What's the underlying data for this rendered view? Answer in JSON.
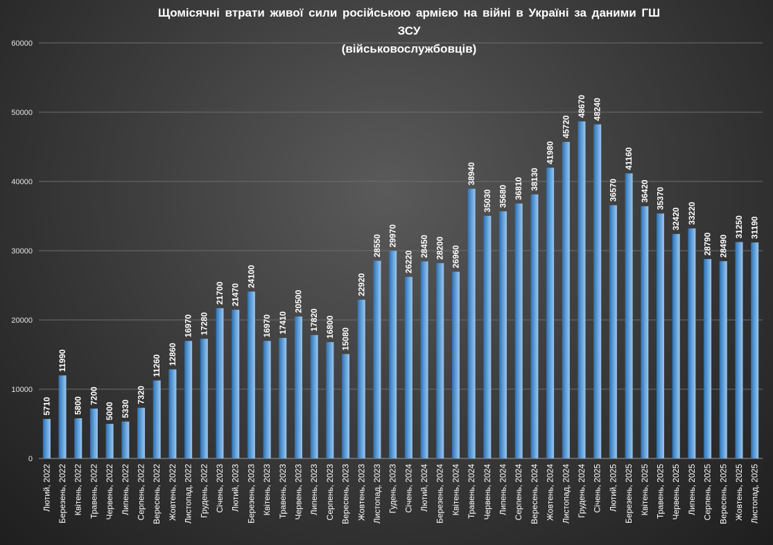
{
  "chart_data": {
    "type": "bar",
    "title": "Щомісячні  втрати  живої  сили  російською  армією  на  війні  в  Україні  за  даними  ГШ",
    "title_line2": "ЗСУ",
    "subtitle": "(військовослужбовців)",
    "xlabel": "",
    "ylabel": "",
    "ylim": [
      0,
      60000
    ],
    "yticks": [
      0,
      10000,
      20000,
      30000,
      40000,
      50000,
      60000
    ],
    "grid": true,
    "bar_color": "#5b9bd5",
    "categories": [
      "Лютий, 2022",
      "Березень, 2022",
      "Квітень, 2022",
      "Травень, 2022",
      "Червень, 2022",
      "Липень, 2022",
      "Серпень, 2022",
      "Вересень, 2022",
      "Жовтень, 2022",
      "Листопад, 2022",
      "Грудень, 2022",
      "Січень, 2023",
      "Лютий, 2023",
      "Березень, 2023",
      "Квітень, 2023",
      "Травень, 2023",
      "Червень, 2023",
      "Липень, 2023",
      "Серпень, 2023",
      "Вересень, 2023",
      "Жовтень, 2023",
      "Листопад, 2023",
      "Гудень, 2023",
      "Січень, 2024",
      "Лютий, 2024",
      "Березень, 2024",
      "Квітень, 2024",
      "Травень, 2024",
      "Червень, 2024",
      "Липень, 2024",
      "Серпень, 2024",
      "Вересень, 2024",
      "Жовтень, 2024",
      "Листопад, 2024",
      "Грудень, 2024",
      "Січень, 2025",
      "Лютий, 2025",
      "Березень, 2025",
      "Квітень, 2025",
      "Травень, 2025",
      "Червень, 2025",
      "Липень, 2025",
      "Серпень, 2025",
      "Вересень, 2025",
      "Жовтень, 2025",
      "Листопад, 2025"
    ],
    "values": [
      5710,
      11990,
      5800,
      7200,
      5000,
      5330,
      7320,
      11260,
      12860,
      16970,
      17280,
      21700,
      21470,
      24100,
      16970,
      17410,
      20500,
      17820,
      16800,
      15080,
      22920,
      28550,
      29970,
      26220,
      28450,
      28200,
      26960,
      38940,
      35030,
      35680,
      36810,
      38130,
      41980,
      45720,
      48670,
      48240,
      36570,
      41160,
      36420,
      35370,
      32420,
      33220,
      28790,
      28490,
      31250,
      31190
    ]
  }
}
